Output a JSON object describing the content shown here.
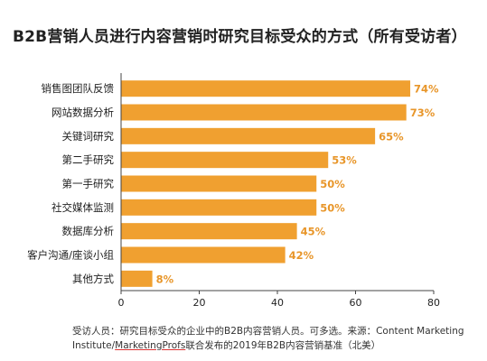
{
  "chart_data": {
    "type": "bar",
    "orientation": "horizontal",
    "title": "B2B营销人员进行内容营销时研究目标受众的方式（所有受访者）",
    "categories": [
      "销售图团队反馈",
      "网站数据分析",
      "关键词研究",
      "第二手研究",
      "第一手研究",
      "社交媒体监测",
      "数据库分析",
      "客户沟通/座谈小组",
      "其他方式"
    ],
    "values": [
      74,
      73,
      65,
      53,
      50,
      50,
      45,
      42,
      8
    ],
    "value_labels": [
      "74%",
      "73%",
      "65%",
      "53%",
      "50%",
      "50%",
      "45%",
      "42%",
      "8%"
    ],
    "xlim": [
      0,
      80
    ],
    "x_ticks": [
      0,
      20,
      40,
      60,
      80
    ],
    "x_tick_labels": [
      "0",
      "20",
      "40",
      "60",
      "80"
    ],
    "grid": false,
    "xlabel": "",
    "ylabel": ""
  },
  "colors": {
    "bar": "#f0a030",
    "value_label": "#e8962a",
    "axis": "#444444",
    "text": "#222222"
  },
  "footnote": {
    "part1": "受访人员：研究目标受众的企业中的B2B内容营销人员。可多选。来源：Content Marketing Institute/",
    "part2": "MarketingProfs",
    "part3": "联合发布的2019年B2B内容营销基准（北美）"
  }
}
